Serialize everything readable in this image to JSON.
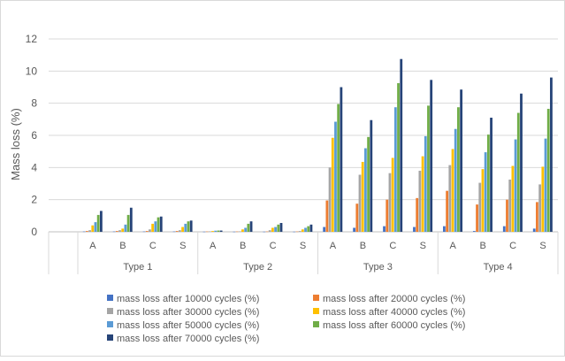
{
  "chart_data": {
    "type": "bar",
    "title": "",
    "ylabel": "Mass loss (%)",
    "xlabel": "",
    "ylim": [
      0,
      12
    ],
    "yticks": [
      0,
      2,
      4,
      6,
      8,
      10,
      12
    ],
    "grid": "horizontal",
    "legend_position": "bottom",
    "groups": [
      {
        "label": "Type 1",
        "categories": [
          "A",
          "B",
          "C",
          "S"
        ]
      },
      {
        "label": "Type 2",
        "categories": [
          "A",
          "B",
          "C",
          "S"
        ]
      },
      {
        "label": "Type 3",
        "categories": [
          "A",
          "B",
          "C",
          "S"
        ]
      },
      {
        "label": "Type 4",
        "categories": [
          "A",
          "B",
          "C",
          "S"
        ]
      }
    ],
    "categories": [
      "A",
      "B",
      "C",
      "S",
      "A",
      "B",
      "C",
      "S",
      "A",
      "B",
      "C",
      "S",
      "A",
      "B",
      "C",
      "S"
    ],
    "series": [
      {
        "name": "mass loss after 10000 cycles (%)",
        "color": "#4472C4",
        "values": [
          0.02,
          0.02,
          0.02,
          0.02,
          0.01,
          0.01,
          0.01,
          0.01,
          0.3,
          0.25,
          0.35,
          0.3,
          0.35,
          0.05,
          0.35,
          0.2
        ]
      },
      {
        "name": "mass loss after 20000 cycles (%)",
        "color": "#ED7D31",
        "values": [
          0.05,
          0.05,
          0.05,
          0.05,
          0.02,
          0.02,
          0.02,
          0.02,
          1.95,
          1.75,
          2.0,
          2.1,
          2.55,
          1.7,
          2.0,
          1.85
        ]
      },
      {
        "name": "mass loss after 30000 cycles (%)",
        "color": "#A5A5A5",
        "values": [
          0.1,
          0.1,
          0.15,
          0.1,
          0.03,
          0.03,
          0.1,
          0.05,
          4.0,
          3.55,
          3.65,
          3.8,
          4.15,
          3.05,
          3.25,
          2.95
        ]
      },
      {
        "name": "mass loss after 40000 cycles (%)",
        "color": "#FFC000",
        "values": [
          0.4,
          0.2,
          0.5,
          0.3,
          0.05,
          0.15,
          0.25,
          0.15,
          5.85,
          4.35,
          4.6,
          4.7,
          5.15,
          3.9,
          4.1,
          4.05
        ]
      },
      {
        "name": "mass loss after 50000 cycles (%)",
        "color": "#5B9BD5",
        "values": [
          0.6,
          0.45,
          0.65,
          0.5,
          0.07,
          0.25,
          0.3,
          0.25,
          6.85,
          5.2,
          7.75,
          5.95,
          6.4,
          4.95,
          5.75,
          5.8
        ]
      },
      {
        "name": "mass loss after 60000 cycles (%)",
        "color": "#70AD47",
        "values": [
          1.05,
          1.05,
          0.9,
          0.65,
          0.08,
          0.5,
          0.45,
          0.35,
          7.95,
          5.9,
          9.25,
          7.85,
          7.75,
          6.05,
          7.4,
          7.65
        ]
      },
      {
        "name": "mass loss after 70000 cycles (%)",
        "color": "#264478",
        "values": [
          1.3,
          1.5,
          0.95,
          0.7,
          0.08,
          0.65,
          0.55,
          0.45,
          9.0,
          6.95,
          10.75,
          9.45,
          8.85,
          7.1,
          8.6,
          9.6
        ]
      }
    ]
  }
}
